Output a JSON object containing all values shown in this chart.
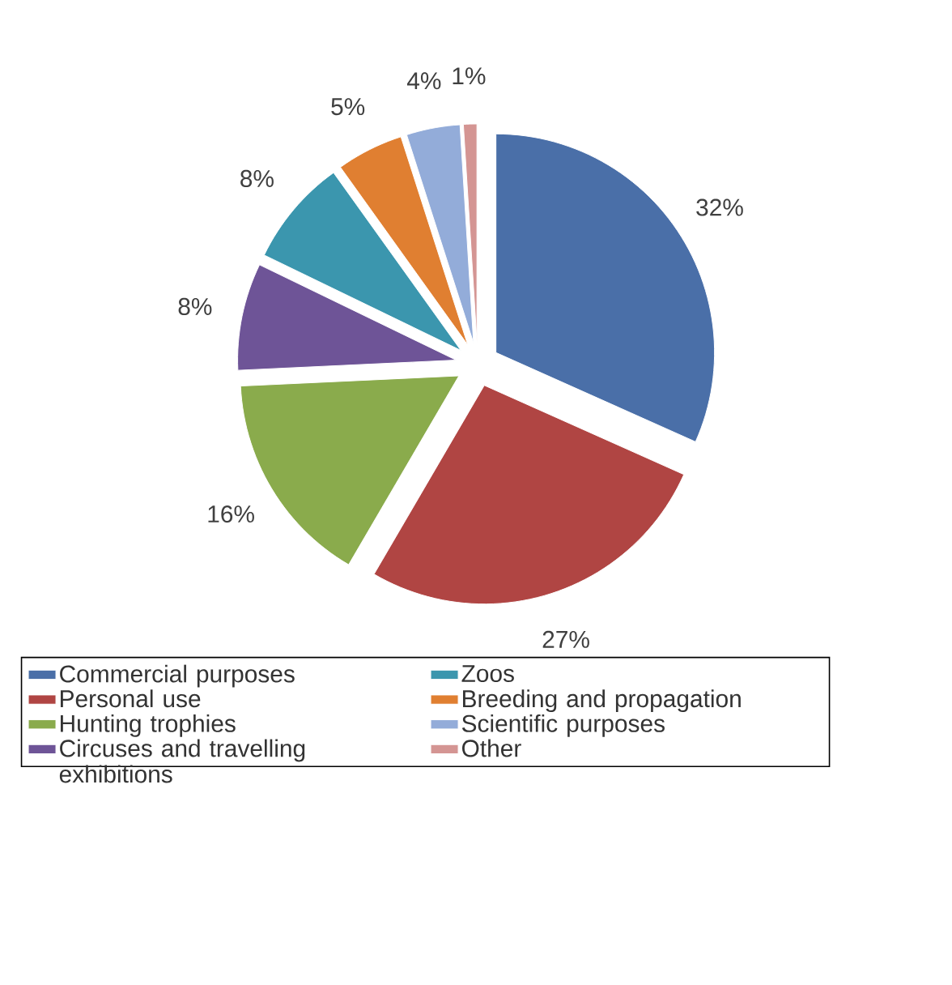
{
  "chart_data": {
    "type": "pie",
    "categories": [
      "Commercial purposes",
      "Personal use",
      "Hunting trophies",
      "Circuses and travelling exhibitions",
      "Zoos",
      "Breeding and propagation",
      "Scientific purposes",
      "Other"
    ],
    "values": [
      32,
      27,
      16,
      8,
      8,
      5,
      4,
      1
    ],
    "value_labels": [
      "32%",
      "27%",
      "16%",
      "8%",
      "8%",
      "5%",
      "4%",
      "1%"
    ],
    "colors": [
      "#4a6fa8",
      "#b04543",
      "#8aab4c",
      "#6e5497",
      "#3b96ae",
      "#e07f31",
      "#93acd9",
      "#d49593"
    ],
    "legend": "bottom"
  }
}
